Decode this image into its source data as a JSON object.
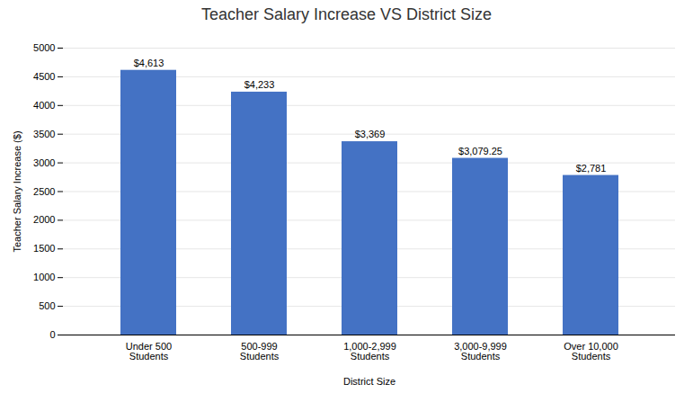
{
  "chart_data": {
    "type": "bar",
    "title": "Teacher Salary Increase VS District Size",
    "xlabel": "District Size",
    "ylabel": "Teacher Salary Increase ($)",
    "categories": [
      "Under 500\nStudents",
      "500-999\nStudents",
      "1,000-2,999\nStudents",
      "3,000-9,999\nStudents",
      "Over 10,000\nStudents"
    ],
    "values": [
      4613,
      4233,
      3369,
      3079.25,
      2781
    ],
    "value_labels": [
      "$4,613",
      "$4,233",
      "$3,369",
      "$3,079.25",
      "$2,781"
    ],
    "data_labels": true,
    "color": "#4472C4",
    "ylim": [
      0,
      5000
    ],
    "yticks": [
      0,
      500,
      1000,
      1500,
      2000,
      2500,
      3000,
      3500,
      4000,
      4500,
      5000
    ],
    "grid": true
  }
}
